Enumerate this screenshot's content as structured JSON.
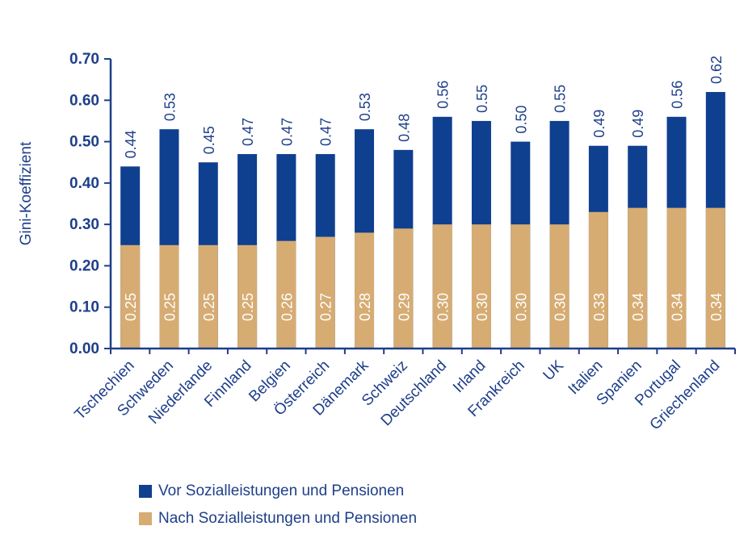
{
  "chart_data": {
    "type": "bar",
    "ylabel": "Gini-Koeffizient",
    "ylim": [
      0,
      0.7
    ],
    "yticks": [
      "0.00",
      "0.10",
      "0.20",
      "0.30",
      "0.40",
      "0.50",
      "0.60",
      "0.70"
    ],
    "categories": [
      "Tschechien",
      "Schweden",
      "Niederlande",
      "Finnland",
      "Belgien",
      "Österreich",
      "Dänemark",
      "Schweiz",
      "Deutschland",
      "Irland",
      "Frankreich",
      "UK",
      "Italien",
      "Spanien",
      "Portugal",
      "Griechenland"
    ],
    "series": [
      {
        "name": "Vor Sozialleistungen und Pensionen",
        "values": [
          0.44,
          0.53,
          0.45,
          0.47,
          0.47,
          0.47,
          0.53,
          0.48,
          0.56,
          0.55,
          0.5,
          0.55,
          0.49,
          0.49,
          0.56,
          0.62
        ],
        "labels": [
          "0.44",
          "0.53",
          "0.45",
          "0.47",
          "0.47",
          "0.47",
          "0.53",
          "0.48",
          "0.56",
          "0.55",
          "0.50",
          "0.55",
          "0.49",
          "0.49",
          "0.56",
          "0.62"
        ],
        "color": "#0f3f8f"
      },
      {
        "name": "Nach Sozialleistungen und Pensionen",
        "values": [
          0.25,
          0.25,
          0.25,
          0.25,
          0.26,
          0.27,
          0.28,
          0.29,
          0.3,
          0.3,
          0.3,
          0.3,
          0.33,
          0.34,
          0.34,
          0.34
        ],
        "labels": [
          "0.25",
          "0.25",
          "0.25",
          "0.25",
          "0.26",
          "0.27",
          "0.28",
          "0.29",
          "0.30",
          "0.30",
          "0.30",
          "0.30",
          "0.33",
          "0.34",
          "0.34",
          "0.34"
        ],
        "color": "#d6ac73"
      }
    ],
    "axis_color": "#1e3f8a",
    "legend_position": "bottom"
  }
}
